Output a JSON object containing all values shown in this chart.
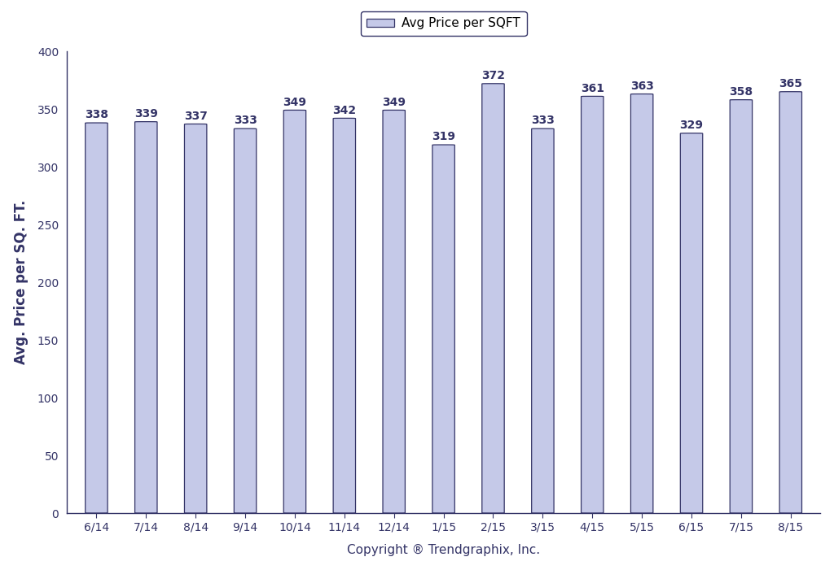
{
  "categories": [
    "6/14",
    "7/14",
    "8/14",
    "9/14",
    "10/14",
    "11/14",
    "12/14",
    "1/15",
    "2/15",
    "3/15",
    "4/15",
    "5/15",
    "6/15",
    "7/15",
    "8/15"
  ],
  "values": [
    338,
    339,
    337,
    333,
    349,
    342,
    349,
    319,
    372,
    333,
    361,
    363,
    329,
    358,
    365
  ],
  "bar_color": "#c5c9e8",
  "bar_edge_color": "#333366",
  "ylabel": "Avg. Price per SQ. FT.",
  "xlabel": "Copyright ® Trendgraphix, Inc.",
  "legend_label": "Avg Price per SQFT",
  "ylim": [
    0,
    400
  ],
  "yticks": [
    0,
    50,
    100,
    150,
    200,
    250,
    300,
    350,
    400
  ],
  "background_color": "#ffffff",
  "bar_width": 0.45,
  "tick_fontsize": 10,
  "ylabel_fontsize": 12,
  "xlabel_fontsize": 11,
  "legend_fontsize": 11,
  "value_label_fontsize": 10,
  "spine_color": "#333366",
  "tick_color": "#333366",
  "label_color": "#333366"
}
